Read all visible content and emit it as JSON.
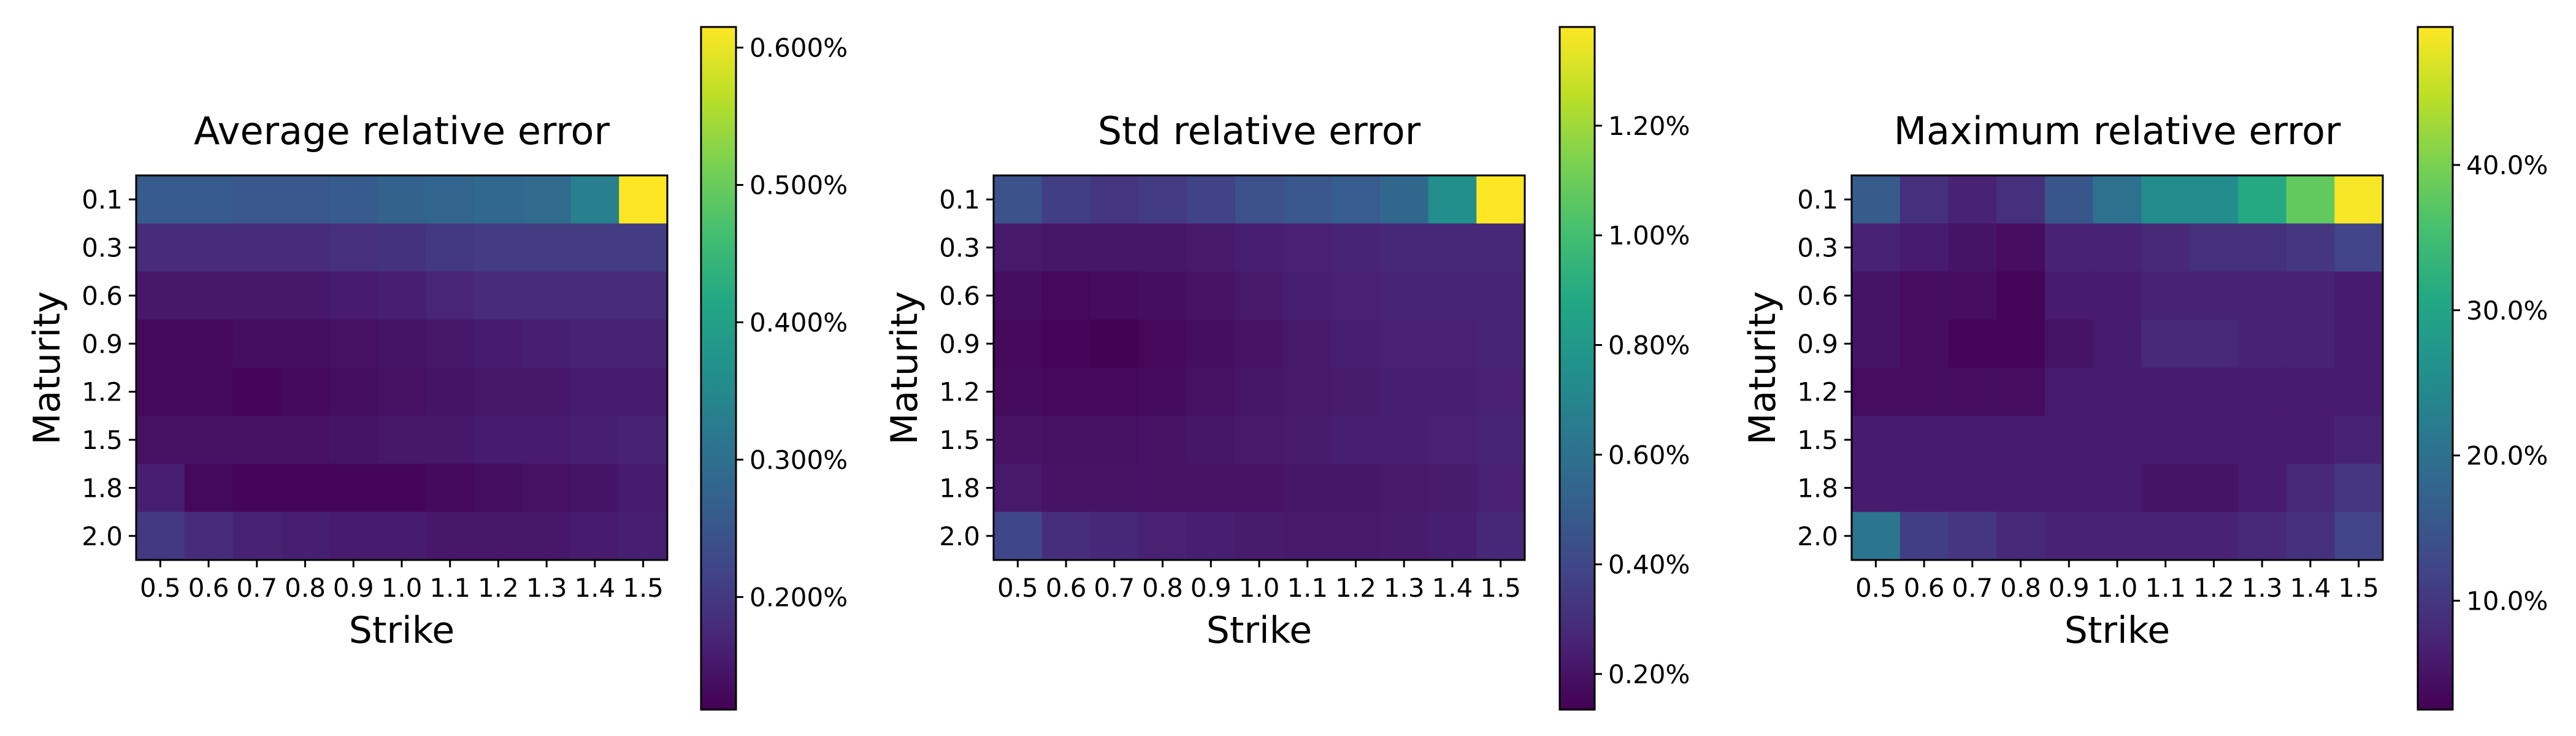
{
  "colormap": [
    "#440154",
    "#482475",
    "#414487",
    "#355f8d",
    "#2a788e",
    "#21918c",
    "#22a884",
    "#44bf70",
    "#7ad151",
    "#bddf26",
    "#fde725"
  ],
  "chart_data": [
    {
      "type": "heatmap",
      "title": "Average relative error",
      "xlabel": "Strike",
      "ylabel": "Maturity",
      "x": [
        "0.5",
        "0.6",
        "0.7",
        "0.8",
        "0.9",
        "1.0",
        "1.1",
        "1.2",
        "1.3",
        "1.4",
        "1.5"
      ],
      "y": [
        "0.1",
        "0.3",
        "0.6",
        "0.9",
        "1.2",
        "1.5",
        "1.8",
        "2.0"
      ],
      "colorbar": {
        "min": 0.118,
        "max": 0.615,
        "ticks": [
          0.2,
          0.3,
          0.4,
          0.5,
          0.6
        ],
        "tick_labels": [
          "0.200%",
          "0.300%",
          "0.400%",
          "0.500%",
          "0.600%"
        ]
      },
      "values": [
        [
          0.26,
          0.26,
          0.255,
          0.255,
          0.26,
          0.275,
          0.28,
          0.285,
          0.29,
          0.33,
          0.615
        ],
        [
          0.18,
          0.18,
          0.18,
          0.18,
          0.185,
          0.19,
          0.2,
          0.205,
          0.205,
          0.205,
          0.205
        ],
        [
          0.15,
          0.15,
          0.15,
          0.15,
          0.155,
          0.16,
          0.17,
          0.18,
          0.18,
          0.18,
          0.18
        ],
        [
          0.13,
          0.13,
          0.135,
          0.135,
          0.14,
          0.145,
          0.15,
          0.155,
          0.16,
          0.165,
          0.165
        ],
        [
          0.13,
          0.13,
          0.125,
          0.13,
          0.135,
          0.14,
          0.145,
          0.15,
          0.15,
          0.155,
          0.155
        ],
        [
          0.14,
          0.14,
          0.14,
          0.14,
          0.145,
          0.15,
          0.15,
          0.155,
          0.155,
          0.16,
          0.165
        ],
        [
          0.16,
          0.13,
          0.125,
          0.125,
          0.125,
          0.125,
          0.13,
          0.135,
          0.14,
          0.145,
          0.155
        ],
        [
          0.2,
          0.18,
          0.165,
          0.16,
          0.155,
          0.155,
          0.15,
          0.15,
          0.15,
          0.155,
          0.16
        ]
      ]
    },
    {
      "type": "heatmap",
      "title": "Std relative error",
      "xlabel": "Strike",
      "ylabel": "Maturity",
      "x": [
        "0.5",
        "0.6",
        "0.7",
        "0.8",
        "0.9",
        "1.0",
        "1.1",
        "1.2",
        "1.3",
        "1.4",
        "1.5"
      ],
      "y": [
        "0.1",
        "0.3",
        "0.6",
        "0.9",
        "1.2",
        "1.5",
        "1.8",
        "2.0"
      ],
      "colorbar": {
        "min": 0.135,
        "max": 1.38,
        "ticks": [
          0.2,
          0.4,
          0.6,
          0.8,
          1.0,
          1.2
        ],
        "tick_labels": [
          "0.20%",
          "0.40%",
          "0.60%",
          "0.80%",
          "1.00%",
          "1.20%"
        ]
      },
      "values": [
        [
          0.45,
          0.36,
          0.33,
          0.35,
          0.38,
          0.44,
          0.47,
          0.5,
          0.55,
          0.75,
          1.38
        ],
        [
          0.22,
          0.21,
          0.21,
          0.21,
          0.22,
          0.24,
          0.25,
          0.26,
          0.27,
          0.27,
          0.27
        ],
        [
          0.18,
          0.16,
          0.17,
          0.18,
          0.2,
          0.22,
          0.24,
          0.25,
          0.26,
          0.26,
          0.26
        ],
        [
          0.16,
          0.15,
          0.14,
          0.16,
          0.18,
          0.2,
          0.22,
          0.24,
          0.25,
          0.25,
          0.26
        ],
        [
          0.17,
          0.16,
          0.16,
          0.17,
          0.19,
          0.21,
          0.22,
          0.23,
          0.24,
          0.24,
          0.25
        ],
        [
          0.2,
          0.19,
          0.19,
          0.2,
          0.21,
          0.22,
          0.23,
          0.24,
          0.24,
          0.25,
          0.26
        ],
        [
          0.22,
          0.2,
          0.2,
          0.2,
          0.2,
          0.2,
          0.21,
          0.21,
          0.22,
          0.23,
          0.25
        ],
        [
          0.4,
          0.3,
          0.27,
          0.25,
          0.24,
          0.23,
          0.22,
          0.22,
          0.23,
          0.24,
          0.27
        ]
      ]
    },
    {
      "type": "heatmap",
      "title": "Maximum relative error",
      "xlabel": "Strike",
      "ylabel": "Maturity",
      "x": [
        "0.5",
        "0.6",
        "0.7",
        "0.8",
        "0.9",
        "1.0",
        "1.1",
        "1.2",
        "1.3",
        "1.4",
        "1.5"
      ],
      "y": [
        "0.1",
        "0.3",
        "0.6",
        "0.9",
        "1.2",
        "1.5",
        "1.8",
        "2.0"
      ],
      "colorbar": {
        "min": 2.5,
        "max": 49.5,
        "ticks": [
          10,
          20,
          30,
          40
        ],
        "tick_labels": [
          "10.0%",
          "20.0%",
          "30.0%",
          "40.0%"
        ]
      },
      "values": [
        [
          16,
          9,
          7,
          9,
          15,
          20,
          25,
          25,
          31,
          38,
          49
        ],
        [
          7,
          6,
          5,
          4,
          7,
          7,
          8,
          9,
          9,
          10,
          12
        ],
        [
          5,
          4,
          4,
          3,
          6,
          6,
          7,
          7,
          7,
          7,
          6
        ],
        [
          5,
          4,
          3,
          3,
          5,
          6,
          8,
          8,
          7,
          7,
          6
        ],
        [
          4,
          4,
          4,
          4,
          6,
          6,
          6,
          6,
          6,
          6,
          6
        ],
        [
          6,
          6,
          6,
          6,
          6,
          6,
          6,
          6,
          6,
          6,
          7
        ],
        [
          6,
          6,
          6,
          6,
          6,
          6,
          5,
          5,
          6,
          8,
          10
        ],
        [
          21,
          11,
          10,
          8,
          7,
          7,
          7,
          7,
          8,
          9,
          12
        ]
      ]
    }
  ]
}
